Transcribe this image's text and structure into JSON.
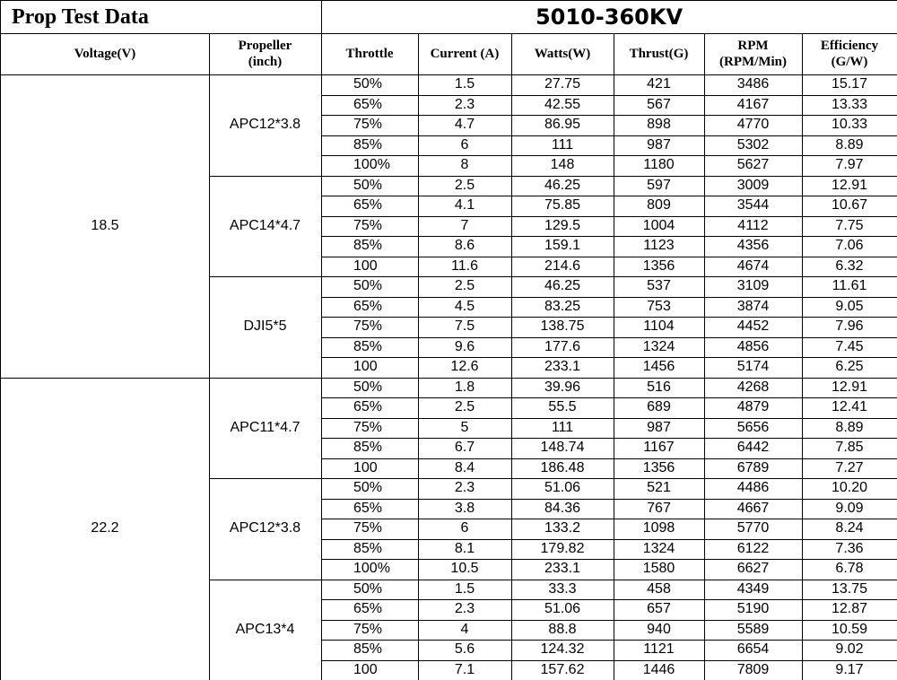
{
  "header": {
    "title": "Prop Test Data",
    "model": "5010-360KV"
  },
  "table": {
    "columns": [
      [
        "Voltage(V)"
      ],
      [
        "Propeller",
        "(inch)"
      ],
      [
        "Throttle"
      ],
      [
        "Current (A)"
      ],
      [
        "Watts(W)"
      ],
      [
        "Thrust(G)"
      ],
      [
        "RPM",
        "(RPM/Min)"
      ],
      [
        "Efficiency",
        "(G/W)"
      ]
    ],
    "groups": [
      {
        "voltage": "18.5",
        "propellers": [
          {
            "name": "APC12*3.8",
            "rows": [
              [
                "50%",
                "1.5",
                "27.75",
                "421",
                "3486",
                "15.17"
              ],
              [
                "65%",
                "2.3",
                "42.55",
                "567",
                "4167",
                "13.33"
              ],
              [
                "75%",
                "4.7",
                "86.95",
                "898",
                "4770",
                "10.33"
              ],
              [
                "85%",
                "6",
                "111",
                "987",
                "5302",
                "8.89"
              ],
              [
                "100%",
                "8",
                "148",
                "1180",
                "5627",
                "7.97"
              ]
            ]
          },
          {
            "name": "APC14*4.7",
            "rows": [
              [
                "50%",
                "2.5",
                "46.25",
                "597",
                "3009",
                "12.91"
              ],
              [
                "65%",
                "4.1",
                "75.85",
                "809",
                "3544",
                "10.67"
              ],
              [
                "75%",
                "7",
                "129.5",
                "1004",
                "4112",
                "7.75"
              ],
              [
                "85%",
                "8.6",
                "159.1",
                "1123",
                "4356",
                "7.06"
              ],
              [
                "100",
                "11.6",
                "214.6",
                "1356",
                "4674",
                "6.32"
              ]
            ]
          },
          {
            "name": "DJI5*5",
            "rows": [
              [
                "50%",
                "2.5",
                "46.25",
                "537",
                "3109",
                "11.61"
              ],
              [
                "65%",
                "4.5",
                "83.25",
                "753",
                "3874",
                "9.05"
              ],
              [
                "75%",
                "7.5",
                "138.75",
                "1104",
                "4452",
                "7.96"
              ],
              [
                "85%",
                "9.6",
                "177.6",
                "1324",
                "4856",
                "7.45"
              ],
              [
                "100",
                "12.6",
                "233.1",
                "1456",
                "5174",
                "6.25"
              ]
            ]
          }
        ]
      },
      {
        "voltage": "22.2",
        "propellers": [
          {
            "name": "APC11*4.7",
            "rows": [
              [
                "50%",
                "1.8",
                "39.96",
                "516",
                "4268",
                "12.91"
              ],
              [
                "65%",
                "2.5",
                "55.5",
                "689",
                "4879",
                "12.41"
              ],
              [
                "75%",
                "5",
                "111",
                "987",
                "5656",
                "8.89"
              ],
              [
                "85%",
                "6.7",
                "148.74",
                "1167",
                "6442",
                "7.85"
              ],
              [
                "100",
                "8.4",
                "186.48",
                "1356",
                "6789",
                "7.27"
              ]
            ]
          },
          {
            "name": "APC12*3.8",
            "rows": [
              [
                "50%",
                "2.3",
                "51.06",
                "521",
                "4486",
                "10.20"
              ],
              [
                "65%",
                "3.8",
                "84.36",
                "767",
                "4667",
                "9.09"
              ],
              [
                "75%",
                "6",
                "133.2",
                "1098",
                "5770",
                "8.24"
              ],
              [
                "85%",
                "8.1",
                "179.82",
                "1324",
                "6122",
                "7.36"
              ],
              [
                "100%",
                "10.5",
                "233.1",
                "1580",
                "6627",
                "6.78"
              ]
            ]
          },
          {
            "name": "APC13*4",
            "rows": [
              [
                "50%",
                "1.5",
                "33.3",
                "458",
                "4349",
                "13.75"
              ],
              [
                "65%",
                "2.3",
                "51.06",
                "657",
                "5190",
                "12.87"
              ],
              [
                "75%",
                "4",
                "88.8",
                "940",
                "5589",
                "10.59"
              ],
              [
                "85%",
                "5.6",
                "124.32",
                "1121",
                "6654",
                "9.02"
              ],
              [
                "100",
                "7.1",
                "157.62",
                "1446",
                "7809",
                "9.17"
              ]
            ]
          }
        ]
      }
    ]
  }
}
